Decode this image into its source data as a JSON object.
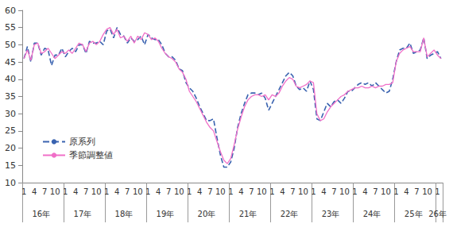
{
  "chart_data": {
    "type": "line",
    "categories": [
      "1",
      null,
      null,
      "4",
      null,
      null,
      "7",
      null,
      null,
      "10",
      null,
      null,
      "1",
      null,
      null,
      "4",
      null,
      null,
      "7",
      null,
      null,
      "10",
      null,
      null,
      "1",
      null,
      null,
      "4",
      null,
      null,
      "7",
      null,
      null,
      "10",
      null,
      null,
      "1",
      null,
      null,
      "4",
      null,
      null,
      "7",
      null,
      null,
      "10",
      null,
      null,
      "1",
      null,
      null,
      "4",
      null,
      null,
      "7",
      null,
      null,
      "10",
      null,
      null,
      "1",
      null,
      null,
      "4",
      null,
      null,
      "7",
      null,
      null,
      "10",
      null,
      null,
      "1",
      null,
      null,
      "4",
      null,
      null,
      "7",
      null,
      null,
      "10",
      null,
      null,
      "1",
      null,
      null,
      "4",
      null,
      null,
      "7",
      null,
      null,
      "10",
      null,
      null,
      "1",
      null,
      null,
      "4",
      null,
      null,
      "7",
      null,
      null,
      "10",
      null,
      null,
      "1",
      null,
      null,
      "4",
      null,
      null,
      "7",
      null,
      null,
      "10",
      null,
      null,
      "1",
      null
    ],
    "year_labels": [
      "16年",
      "17年",
      "18年",
      "19年",
      "20年",
      "21年",
      "22年",
      "23年",
      "24年",
      "25年",
      "26年"
    ],
    "series": [
      {
        "name": "原系列",
        "color": "#3a63b0",
        "line_style": "dashed",
        "values": [
          46,
          49.5,
          45,
          50.5,
          50.5,
          47,
          49,
          48.5,
          44,
          47,
          47,
          49,
          46.5,
          48,
          49,
          48,
          50,
          50,
          47.5,
          51,
          50.5,
          50.5,
          51,
          50,
          54,
          54.5,
          52,
          55,
          53,
          52.5,
          50.5,
          52,
          51,
          51.5,
          52.5,
          50,
          53,
          52,
          51.5,
          51.5,
          50,
          47.5,
          46.5,
          46.5,
          45.5,
          43,
          42.5,
          39,
          37.5,
          36.5,
          34.5,
          32,
          30,
          28,
          28,
          28.5,
          23,
          18,
          14.5,
          14.5,
          16,
          20,
          26,
          30,
          33,
          35.5,
          36,
          36,
          35.5,
          36,
          34.5,
          31,
          33,
          35,
          37,
          39,
          41,
          42,
          41,
          38,
          37,
          37.5,
          36.5,
          39.5,
          37,
          28.5,
          28,
          30.5,
          33,
          32,
          33.5,
          34,
          33,
          34.5,
          36.5,
          36.5,
          37.5,
          38.5,
          39,
          38.5,
          39,
          38,
          39,
          38,
          37,
          36,
          36.5,
          40,
          45,
          48.5,
          49,
          49,
          50.5,
          47.5,
          48,
          48.5,
          52,
          46,
          47,
          47.5,
          48,
          46
        ]
      },
      {
        "name": "季節調整値",
        "color": "#f06fc8",
        "line_style": "solid",
        "values": [
          46,
          48.5,
          45.5,
          50,
          50.5,
          47.5,
          48,
          49,
          47.5,
          46,
          47,
          48,
          47.5,
          48.5,
          47.5,
          49,
          50.5,
          50,
          48,
          50.5,
          51,
          50,
          51,
          53,
          54.5,
          55,
          53,
          54.5,
          52,
          52.5,
          51,
          52.5,
          50.5,
          52.5,
          51.5,
          53.5,
          53,
          51.5,
          52,
          51,
          49,
          47.5,
          46.5,
          46,
          45,
          43,
          42,
          40,
          36.5,
          35,
          33.5,
          31.5,
          29.5,
          27.5,
          26,
          25,
          22,
          19,
          16.5,
          15.5,
          17,
          21,
          25.5,
          29,
          32,
          34,
          35,
          35.5,
          35.5,
          35,
          35.5,
          34,
          35.5,
          35,
          36,
          38,
          39.5,
          40.5,
          40,
          38,
          37.5,
          38,
          38.5,
          39.5,
          39,
          30,
          28,
          28.5,
          30.5,
          32,
          33,
          34,
          35,
          35.5,
          36.5,
          37,
          37.5,
          37.5,
          38,
          37.5,
          37.5,
          38,
          37.5,
          38,
          38,
          38.5,
          38.5,
          39,
          45,
          47.5,
          48.5,
          49,
          49.5,
          48,
          48,
          48,
          52,
          46.5,
          47.5,
          48.5,
          47,
          46
        ]
      }
    ],
    "ylim": [
      10,
      60
    ],
    "yticks": [
      10,
      15,
      20,
      25,
      30,
      35,
      40,
      45,
      50,
      55,
      60
    ],
    "grid": false,
    "legend": "lower left"
  }
}
